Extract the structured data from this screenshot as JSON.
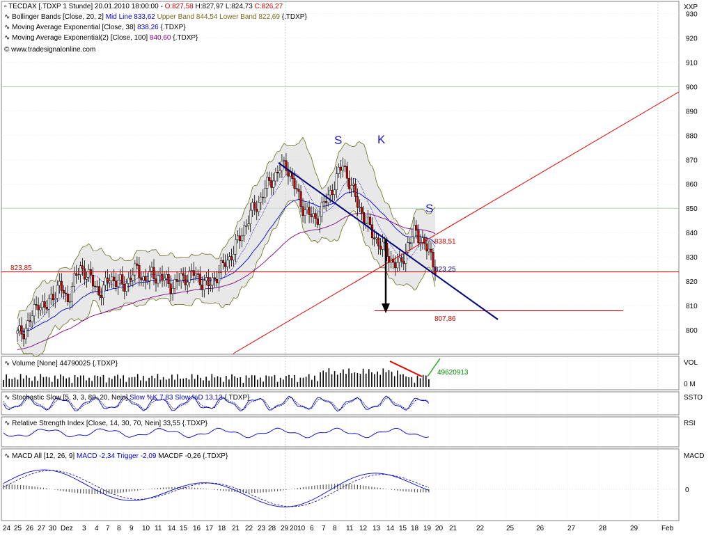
{
  "header": {
    "line1_prefix": "TECDAX [.TDXP  1 Stunde] 20.01.2010 18:00:00 - ",
    "line1_open": "O:827,58",
    "line1_high": " H:827,97",
    "line1_low": " L:824,73",
    "line1_close": " C:826,27",
    "line2_prefix": "Bollinger Bands [Close, 20, 2] ",
    "line2_mid": "Mid Line 833,62",
    "line2_upper": " Upper Band 844,54",
    "line2_lower": " Lower Band 822,69",
    "line2_suffix": " {.TDXP}",
    "line3_prefix": "Moving Average Exponential [Close, 38] ",
    "line3_value": "838,26",
    "line3_suffix": " {.TDXP}",
    "line4_prefix": "Moving Average Exponential(2) [Close, 100] ",
    "line4_value": "840,60",
    "line4_suffix": " {.TDXP}",
    "copyright": "© www.tradesignalonline.com"
  },
  "colors": {
    "candle": "#000000",
    "candle_down": "#cc0000",
    "boll_fill": "#d8d8d8",
    "boll_edge": "#6b6b1a",
    "mid_line": "#0000cc",
    "ema38": "#0000cc",
    "ema100": "#800080",
    "trend_blue": "#000080",
    "trend_red": "#dd0000",
    "grid": "#c8dcc8"
  },
  "chart_data": {
    "type": "candlestick",
    "symbol": "TECDAX",
    "yaxis_unit": "XXP",
    "ylim": [
      790,
      935
    ],
    "y_ticks": [
      800,
      810,
      820,
      830,
      840,
      850,
      860,
      870,
      880,
      890,
      900,
      910,
      920,
      930
    ],
    "x_ticks": [
      "24",
      "25",
      "26",
      "27",
      "30",
      "Dez",
      "3",
      "4",
      "7",
      "8",
      "9",
      "10",
      "11",
      "14",
      "15",
      "16",
      "17",
      "18",
      "21",
      "22",
      "23",
      "28",
      "29",
      "2010",
      "6",
      "7",
      "8",
      "11",
      "12",
      "13",
      "14",
      "15",
      "18",
      "19",
      "20",
      "21",
      "22",
      "25",
      "26",
      "27",
      "28",
      "29",
      "Feb"
    ],
    "annotations": {
      "shoulder_left": "S",
      "head": "K",
      "shoulder_right": "S",
      "resistance_label": "823,85",
      "price_label_1": "838,51",
      "price_label_2": "823,25",
      "target_label": "807,86"
    },
    "levels": {
      "horizontal_823_85": 823.85,
      "target_807_86": 807.86
    },
    "close_path": [
      798,
      800,
      805,
      812,
      808,
      815,
      818,
      812,
      820,
      826,
      822,
      818,
      815,
      822,
      820,
      818,
      822,
      825,
      820,
      823,
      822,
      820,
      818,
      821,
      822,
      823,
      820,
      818,
      822,
      826,
      830,
      835,
      842,
      848,
      852,
      858,
      862,
      866,
      868,
      860,
      852,
      848,
      845,
      850,
      855,
      862,
      868,
      860,
      852,
      846,
      840,
      836,
      832,
      828,
      826,
      834,
      840,
      838,
      832,
      826
    ],
    "volume_label": "VOL",
    "volume_series": "Volume [None] 44790025 {.TDXP}",
    "volume_value": "49620913",
    "volume_axis": [
      "0 M"
    ],
    "stoch_label": "SSTO",
    "stoch_series_prefix": "Stochastic Slow [5, 3, 3, 80, 20, Nein] ",
    "stoch_k": "Slow %K 7,83",
    "stoch_d": " Slow %D 13,13",
    "stoch_suffix": " {.TDXP}",
    "rsi_label": "RSI",
    "rsi_series": "Relative Strength Index [Close, 14, 30, 70, Nein] 33,55 {.TDXP}",
    "macd_label": "MACD",
    "macd_series_prefix": "MACD All [12, 26, 9] ",
    "macd_value": "MACD -2,34",
    "macd_trigger": " Trigger -2,09",
    "macd_macdf": " MACDF -0,26",
    "macd_suffix": " {.TDXP}",
    "macd_axis": [
      "0"
    ]
  }
}
